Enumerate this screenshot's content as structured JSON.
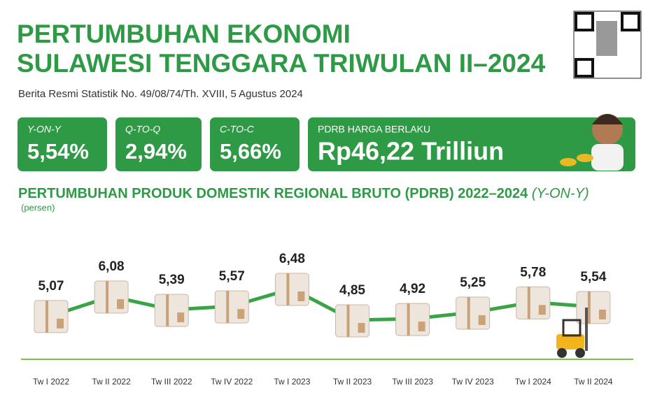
{
  "header": {
    "title_lines": [
      "PERTUMBUHAN EKONOMI",
      "SULAWESI TENGGARA TRIWULAN II–2024"
    ],
    "subtitle": "Berita Resmi Statistik No. 49/08/74/Th. XVIII, 5 Agustus 2024"
  },
  "cards": [
    {
      "label": "Y-ON-Y",
      "value": "5,54%"
    },
    {
      "label": "Q-TO-Q",
      "value": "2,94%"
    },
    {
      "label": "C-TO-C",
      "value": "5,66%"
    },
    {
      "label": "PDRB HARGA BERLAKU",
      "value": "Rp46,22 Trilliun"
    }
  ],
  "chart_data": {
    "type": "line",
    "title": "PERTUMBUHAN PRODUK DOMESTIK REGIONAL BRUTO (PDRB) 2022–2024",
    "title_suffix": "(Y-ON-Y)",
    "y_label": "(persen)",
    "categories": [
      "Tw I 2022",
      "Tw II 2022",
      "Tw III 2022",
      "Tw IV 2022",
      "Tw I 2023",
      "Tw II 2023",
      "Tw III 2023",
      "Tw IV 2023",
      "Tw I 2024",
      "Tw II 2024"
    ],
    "series": [
      {
        "name": "PDRB",
        "color": "#3aa346",
        "values": [
          5.07,
          6.08,
          5.39,
          5.57,
          6.48,
          4.85,
          4.92,
          5.25,
          5.78,
          5.54
        ],
        "value_labels": [
          "5,07",
          "6,08",
          "5,39",
          "5,57",
          "6,48",
          "4,85",
          "4,92",
          "5,25",
          "5,78",
          "5,54"
        ]
      }
    ]
  }
}
